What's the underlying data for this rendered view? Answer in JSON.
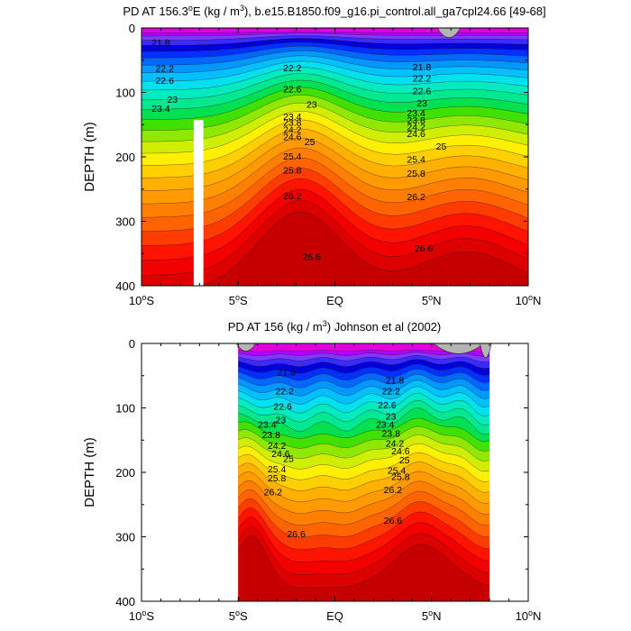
{
  "colors": {
    "bands": [
      "#e000e0",
      "#b000ff",
      "#7a3cff",
      "#3a2cff",
      "#0000d8",
      "#0030ff",
      "#0068ff",
      "#0098ff",
      "#00c0ff",
      "#00e0ee",
      "#00ecc0",
      "#00e890",
      "#00e050",
      "#40e000",
      "#90e800",
      "#d0ef00",
      "#ffef00",
      "#ffd000",
      "#ffb000",
      "#ff9a00",
      "#ff8000",
      "#ff6400",
      "#ff3c00",
      "#ff1400",
      "#f20000",
      "#dd0000",
      "#c60000"
    ],
    "land": "#b4b4b4"
  },
  "chart_data": [
    {
      "type": "heatmap",
      "title": "PD AT 156.3",
      "title_sup": "o",
      "title_mid": "E (kg / m",
      "title_sup2": "3",
      "title_end": "), b.e15.B1850.f09_g16.pi_control.all_ga7cpl24.66 [49-68]",
      "ylabel": "DEPTH (m)",
      "x_ticks": [
        {
          "value": -10,
          "label": "10",
          "sup": "o",
          "end": "S"
        },
        {
          "value": -5,
          "label": "5",
          "sup": "o",
          "end": "S"
        },
        {
          "value": 0,
          "label": "EQ",
          "sup": "",
          "end": ""
        },
        {
          "value": 5,
          "label": "5",
          "sup": "o",
          "end": "N"
        },
        {
          "value": 10,
          "label": "10",
          "sup": "o",
          "end": "N"
        }
      ],
      "y_ticks": [
        0,
        100,
        200,
        300,
        400
      ],
      "xlim": [
        -10,
        10
      ],
      "ylim": [
        0,
        400
      ],
      "y_inverted": true,
      "contour_levels": [
        21.8,
        22.2,
        22.6,
        23,
        23.4,
        23.8,
        24.2,
        24.6,
        25,
        25.4,
        25.8,
        26.2,
        26.6
      ],
      "contour_labels": [
        {
          "text": "21.8",
          "x": -9,
          "y": 24
        },
        {
          "text": "22.2",
          "x": -8.8,
          "y": 64
        },
        {
          "text": "22.6",
          "x": -8.8,
          "y": 83
        },
        {
          "text": "23",
          "x": -8.4,
          "y": 112
        },
        {
          "text": "23.4",
          "x": -9,
          "y": 126
        },
        {
          "text": "22.2",
          "x": -2.2,
          "y": 63
        },
        {
          "text": "22.6",
          "x": -2.2,
          "y": 96
        },
        {
          "text": "23",
          "x": -1.2,
          "y": 120
        },
        {
          "text": "23.4",
          "x": -2.2,
          "y": 139
        },
        {
          "text": "23.8",
          "x": -2.2,
          "y": 148
        },
        {
          "text": "24.2",
          "x": -2.2,
          "y": 159
        },
        {
          "text": "24.6",
          "x": -2.2,
          "y": 170
        },
        {
          "text": "25",
          "x": -1.3,
          "y": 178
        },
        {
          "text": "25.4",
          "x": -2.2,
          "y": 200
        },
        {
          "text": "25.8",
          "x": -2.2,
          "y": 222
        },
        {
          "text": "26.2",
          "x": -2.2,
          "y": 262
        },
        {
          "text": "26.6",
          "x": -1.2,
          "y": 356
        },
        {
          "text": "21.8",
          "x": 4.5,
          "y": 62
        },
        {
          "text": "22.2",
          "x": 4.5,
          "y": 79
        },
        {
          "text": "22.6",
          "x": 4.5,
          "y": 99
        },
        {
          "text": "23",
          "x": 4.5,
          "y": 118
        },
        {
          "text": "23.4",
          "x": 4.2,
          "y": 133
        },
        {
          "text": "23.8",
          "x": 4.2,
          "y": 144
        },
        {
          "text": "24.2",
          "x": 4.2,
          "y": 155
        },
        {
          "text": "24.6",
          "x": 4.2,
          "y": 165
        },
        {
          "text": "25",
          "x": 5.5,
          "y": 185
        },
        {
          "text": "25.4",
          "x": 4.2,
          "y": 205
        },
        {
          "text": "25.8",
          "x": 4.2,
          "y": 227
        },
        {
          "text": "26.2",
          "x": 4.2,
          "y": 263
        },
        {
          "text": "26.6",
          "x": 4.6,
          "y": 343
        }
      ],
      "missing_column": {
        "x_range": [
          -7.3,
          -6.8
        ],
        "y_range": [
          143,
          400
        ]
      },
      "land_patches": [
        {
          "x_center": 5.9,
          "y_depth": 15,
          "half_width": 0.6
        }
      ],
      "grid": false
    },
    {
      "type": "heatmap",
      "title": "PD AT 156 (kg / m",
      "title_sup": "3",
      "title_end": ") Johnson et al (2002)",
      "title_mid": "",
      "title_sup2": "",
      "ylabel": "DEPTH (m)",
      "x_ticks": [
        {
          "value": -10,
          "label": "10",
          "sup": "o",
          "end": "S"
        },
        {
          "value": -5,
          "label": "5",
          "sup": "o",
          "end": "S"
        },
        {
          "value": 0,
          "label": "EQ",
          "sup": "",
          "end": ""
        },
        {
          "value": 5,
          "label": "5",
          "sup": "o",
          "end": "N"
        },
        {
          "value": 10,
          "label": "10",
          "sup": "o",
          "end": "N"
        }
      ],
      "y_ticks": [
        0,
        100,
        200,
        300,
        400
      ],
      "xlim": [
        -10,
        10
      ],
      "ylim": [
        0,
        400
      ],
      "y_inverted": true,
      "data_x_range": [
        -5,
        8
      ],
      "contour_levels": [
        21.8,
        22.2,
        22.6,
        23,
        23.4,
        23.8,
        24.2,
        24.6,
        25,
        25.4,
        25.8,
        26.2,
        26.6
      ],
      "contour_labels": [
        {
          "text": "21.8",
          "x": -2.5,
          "y": 46
        },
        {
          "text": "22.2",
          "x": -2.6,
          "y": 75
        },
        {
          "text": "22.6",
          "x": -2.7,
          "y": 99
        },
        {
          "text": "23",
          "x": -2.8,
          "y": 120
        },
        {
          "text": "23.4",
          "x": -3.5,
          "y": 127
        },
        {
          "text": "23.8",
          "x": -3.3,
          "y": 143
        },
        {
          "text": "24.2",
          "x": -3.0,
          "y": 160
        },
        {
          "text": "24.6",
          "x": -2.8,
          "y": 172
        },
        {
          "text": "25",
          "x": -2.4,
          "y": 180
        },
        {
          "text": "25.4",
          "x": -3.0,
          "y": 196
        },
        {
          "text": "25.8",
          "x": -3.0,
          "y": 210
        },
        {
          "text": "26.2",
          "x": -3.2,
          "y": 232
        },
        {
          "text": "26.6",
          "x": -2.0,
          "y": 297
        },
        {
          "text": "21.8",
          "x": 3.1,
          "y": 58
        },
        {
          "text": "22.2",
          "x": 2.9,
          "y": 75
        },
        {
          "text": "22.6",
          "x": 2.7,
          "y": 97
        },
        {
          "text": "23",
          "x": 2.9,
          "y": 114
        },
        {
          "text": "23.4",
          "x": 2.6,
          "y": 127
        },
        {
          "text": "23.8",
          "x": 2.9,
          "y": 141
        },
        {
          "text": "24.2",
          "x": 3.1,
          "y": 156
        },
        {
          "text": "24.6",
          "x": 3.4,
          "y": 168
        },
        {
          "text": "25",
          "x": 3.6,
          "y": 182
        },
        {
          "text": "25.4",
          "x": 3.2,
          "y": 198
        },
        {
          "text": "25.8",
          "x": 3.4,
          "y": 208
        },
        {
          "text": "26.2",
          "x": 3.0,
          "y": 228
        },
        {
          "text": "26.6",
          "x": 3.0,
          "y": 276
        }
      ],
      "land_patches": [
        {
          "x_center": -4.6,
          "y_depth": 12,
          "half_width": 0.5
        },
        {
          "x_center": 6.4,
          "y_depth": 16,
          "half_width": 1.3
        },
        {
          "x_center": 7.8,
          "y_depth": 22,
          "half_width": 0.3
        }
      ],
      "grid": false
    }
  ]
}
